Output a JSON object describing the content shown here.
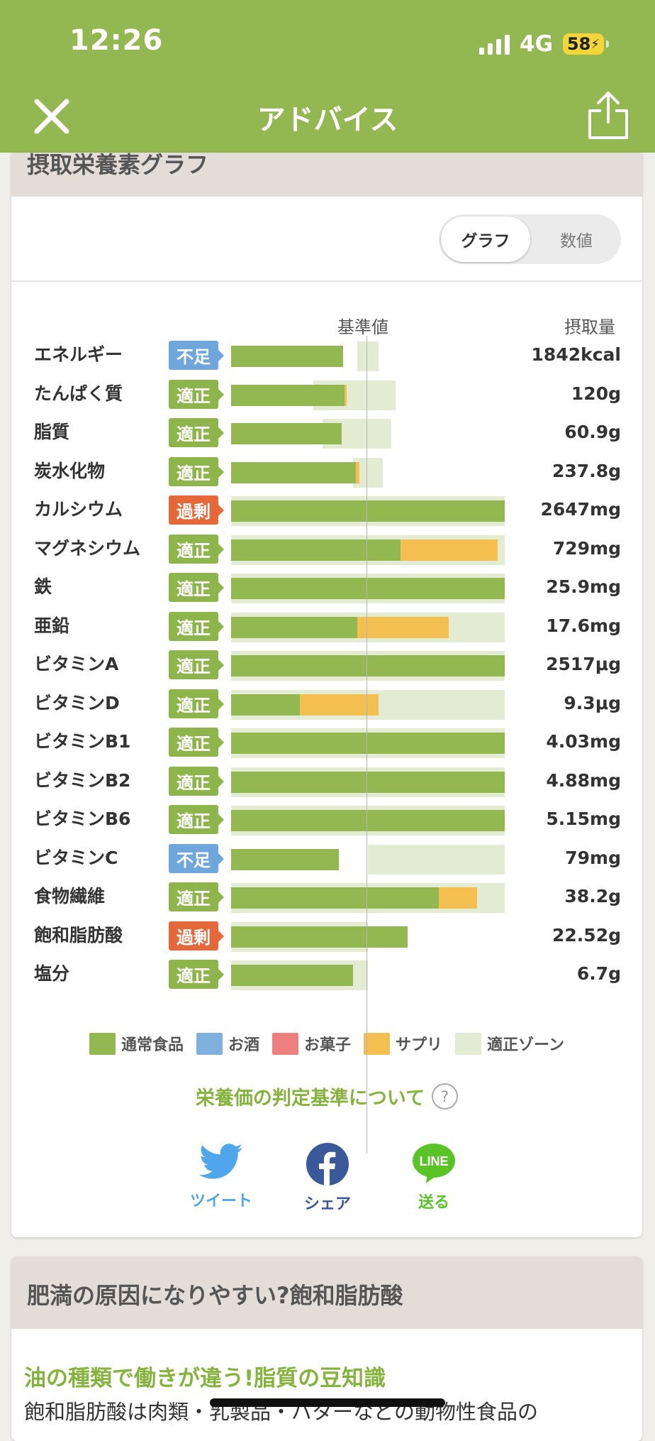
{
  "status_bar": {
    "time": "12:26",
    "network": "4G",
    "battery": "58"
  },
  "app_bar": {
    "title": "アドバイス",
    "close_icon": "close-icon",
    "share_icon": "share-icon"
  },
  "section": {
    "title": "摂取栄養素グラフ"
  },
  "toggle": {
    "graph": "グラフ",
    "numeric": "数値",
    "selected": "グラフ"
  },
  "headers": {
    "reference": "基準値",
    "intake": "摂取量"
  },
  "colors": {
    "regular": "#93b751",
    "alcohol": "#7fb0de",
    "sweets": "#ee7f7f",
    "supplement": "#f4bf51",
    "zone": "#e3ebd2",
    "lacking": "#6fa6dc",
    "ok": "#8db54c",
    "excess": "#e5683a"
  },
  "nutrients": [
    {
      "name": "エネルギー",
      "status": "不足",
      "status_type": "lacking",
      "value": "1842kcal",
      "regular": 0.82,
      "supplement": 0.0,
      "zone": [
        0.92,
        1.08
      ]
    },
    {
      "name": "たんぱく質",
      "status": "適正",
      "status_type": "ok",
      "value": "120g",
      "regular": 0.83,
      "supplement": 0.015,
      "zone": [
        0.6,
        1.2
      ]
    },
    {
      "name": "脂質",
      "status": "適正",
      "status_type": "ok",
      "value": "60.9g",
      "regular": 0.81,
      "supplement": 0.0,
      "zone": [
        0.67,
        1.17
      ]
    },
    {
      "name": "炭水化物",
      "status": "適正",
      "status_type": "ok",
      "value": "237.8g",
      "regular": 0.91,
      "supplement": 0.03,
      "zone": [
        0.89,
        1.11
      ]
    },
    {
      "name": "カルシウム",
      "status": "過剰",
      "status_type": "excess",
      "value": "2647mg",
      "regular": 2.0,
      "supplement": 0.0,
      "zone": [
        0.0,
        2.0
      ]
    },
    {
      "name": "マグネシウム",
      "status": "適正",
      "status_type": "ok",
      "value": "729mg",
      "regular": 1.24,
      "supplement": 0.71,
      "zone": [
        0.0,
        2.0
      ]
    },
    {
      "name": "鉄",
      "status": "適正",
      "status_type": "ok",
      "value": "25.9mg",
      "regular": 2.0,
      "supplement": 0.0,
      "zone": [
        0.0,
        2.0
      ]
    },
    {
      "name": "亜鉛",
      "status": "適正",
      "status_type": "ok",
      "value": "17.6mg",
      "regular": 0.92,
      "supplement": 0.67,
      "zone": [
        0.0,
        2.0
      ]
    },
    {
      "name": "ビタミンA",
      "status": "適正",
      "status_type": "ok",
      "value": "2517μg",
      "regular": 2.0,
      "supplement": 0.0,
      "zone": [
        0.0,
        2.0
      ]
    },
    {
      "name": "ビタミンD",
      "status": "適正",
      "status_type": "ok",
      "value": "9.3μg",
      "regular": 0.5,
      "supplement": 0.58,
      "zone": [
        0.0,
        2.0
      ]
    },
    {
      "name": "ビタミンB1",
      "status": "適正",
      "status_type": "ok",
      "value": "4.03mg",
      "regular": 2.0,
      "supplement": 0.0,
      "zone": [
        0.0,
        2.0
      ]
    },
    {
      "name": "ビタミンB2",
      "status": "適正",
      "status_type": "ok",
      "value": "4.88mg",
      "regular": 2.0,
      "supplement": 0.0,
      "zone": [
        0.0,
        2.0
      ]
    },
    {
      "name": "ビタミンB6",
      "status": "適正",
      "status_type": "ok",
      "value": "5.15mg",
      "regular": 2.0,
      "supplement": 0.0,
      "zone": [
        0.0,
        2.0
      ]
    },
    {
      "name": "ビタミンC",
      "status": "不足",
      "status_type": "lacking",
      "value": "79mg",
      "regular": 0.79,
      "supplement": 0.0,
      "zone": [
        1.0,
        2.0
      ]
    },
    {
      "name": "食物繊維",
      "status": "適正",
      "status_type": "ok",
      "value": "38.2g",
      "regular": 1.52,
      "supplement": 0.28,
      "zone": [
        0.0,
        2.0
      ]
    },
    {
      "name": "飽和脂肪酸",
      "status": "過剰",
      "status_type": "excess",
      "value": "22.52g",
      "regular": 1.29,
      "supplement": 0.0,
      "zone": [
        0.0,
        1.0
      ]
    },
    {
      "name": "塩分",
      "status": "適正",
      "status_type": "ok",
      "value": "6.7g",
      "regular": 0.89,
      "supplement": 0.0,
      "zone": [
        0.0,
        1.0
      ]
    }
  ],
  "legend": [
    {
      "label": "通常食品",
      "color": "#93b751"
    },
    {
      "label": "お酒",
      "color": "#7fb0de"
    },
    {
      "label": "お菓子",
      "color": "#ee7f7f"
    },
    {
      "label": "サプリ",
      "color": "#f4bf51"
    },
    {
      "label": "適正ゾーン",
      "color": "#e3ebd2"
    }
  ],
  "criteria_link": "栄養価の判定基準について",
  "share": {
    "twitter": "ツイート",
    "facebook": "シェア",
    "line": "送る",
    "line_logo": "LINE"
  },
  "article": {
    "title": "肥満の原因になりやすい?飽和脂肪酸",
    "subtitle": "油の種類で働きが違う!脂質の豆知識",
    "body": "飽和脂肪酸は肉類・乳製品・バターなどの動物性食品の"
  }
}
